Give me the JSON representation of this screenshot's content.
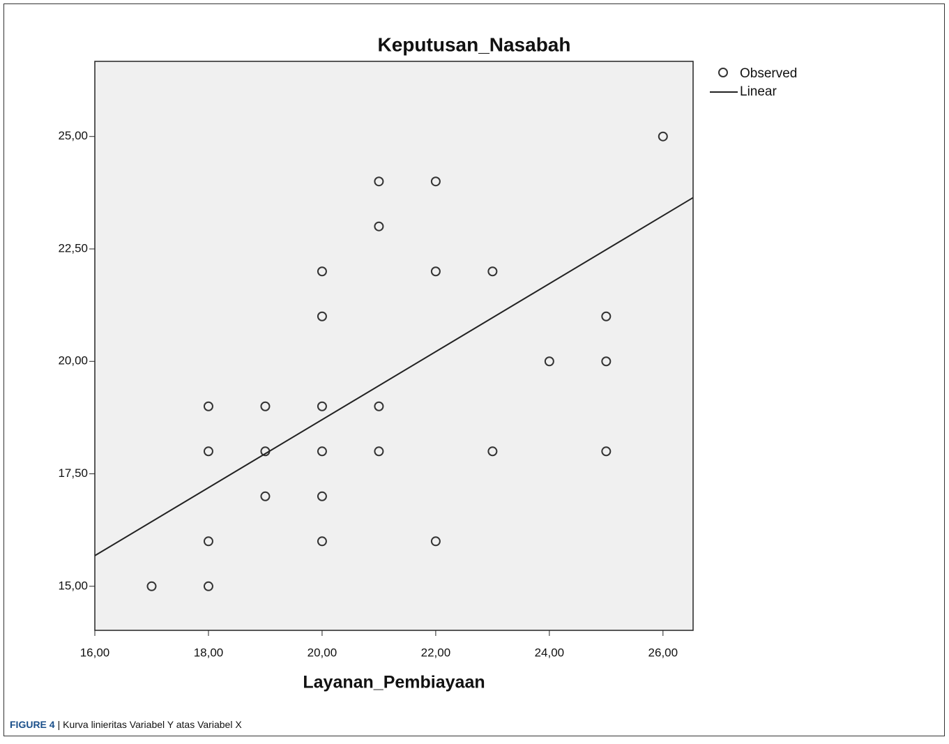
{
  "chart_data": {
    "type": "scatter",
    "title": "Keputusan_Nasabah",
    "x_label": "Layanan_Pembiayaan",
    "xlim": [
      16,
      26.53
    ],
    "ylim": [
      14.02,
      26.67
    ],
    "xticks": [
      {
        "value": 16,
        "label": "16,00"
      },
      {
        "value": 18,
        "label": "18,00"
      },
      {
        "value": 20,
        "label": "20,00"
      },
      {
        "value": 22,
        "label": "22,00"
      },
      {
        "value": 24,
        "label": "24,00"
      },
      {
        "value": 26,
        "label": "26,00"
      }
    ],
    "yticks": [
      {
        "value": 15,
        "label": "15,00"
      },
      {
        "value": 17.5,
        "label": "17,50"
      },
      {
        "value": 20,
        "label": "20,00"
      },
      {
        "value": 22.5,
        "label": "22,50"
      },
      {
        "value": 25,
        "label": "25,00"
      }
    ],
    "series": [
      {
        "name": "Observed",
        "type": "scatter",
        "color": "#333333",
        "x": [
          17,
          18,
          18,
          18,
          18,
          19,
          19,
          19,
          20,
          20,
          20,
          20,
          20,
          20,
          21,
          21,
          21,
          21,
          22,
          22,
          22,
          23,
          23,
          24,
          25,
          25,
          25,
          26
        ],
        "values": [
          15,
          15,
          16,
          18,
          19,
          17,
          18,
          19,
          16,
          17,
          18,
          19,
          21,
          22,
          18,
          19,
          23,
          24,
          16,
          22,
          24,
          18,
          22,
          20,
          18,
          20,
          21,
          25
        ]
      },
      {
        "name": "Linear",
        "type": "line",
        "color": "#222222",
        "x": [
          16,
          26.53
        ],
        "values": [
          15.68,
          23.64
        ]
      }
    ],
    "caption": {
      "label": "FIGURE 4",
      "text": "| Kurva linieritas Variabel Y atas Variabel X"
    }
  }
}
